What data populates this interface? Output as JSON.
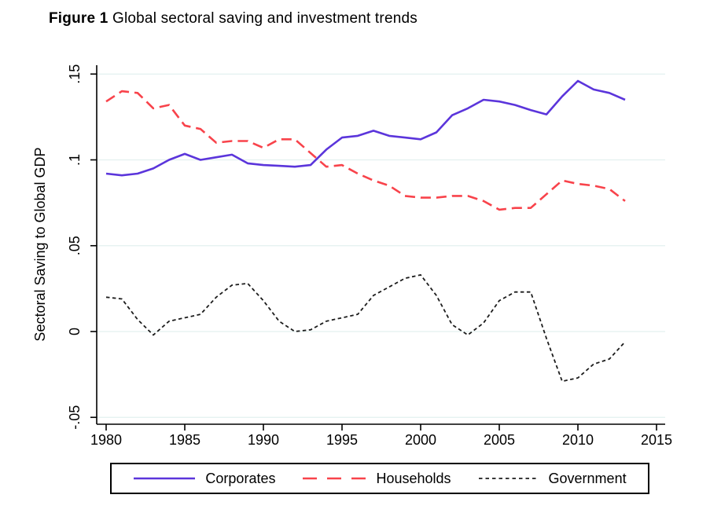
{
  "figure_title": {
    "bold": "Figure 1",
    "rest": " Global sectoral saving and investment trends"
  },
  "chart_data": {
    "type": "line",
    "title": "Figure 1 Global sectoral saving and investment trends",
    "xlabel": "",
    "ylabel": "Sectoral Saving to Global GDP",
    "grid": true,
    "legend_position": "bottom",
    "xlim": [
      1979.4,
      2015.5
    ],
    "ylim": [
      -0.054,
      0.156
    ],
    "x_ticks": {
      "labels": [
        "1980",
        "1985",
        "1990",
        "1995",
        "2000",
        "2005",
        "2010",
        "2015"
      ],
      "values": [
        1980,
        1985,
        1990,
        1995,
        2000,
        2005,
        2010,
        2015
      ]
    },
    "y_ticks": {
      "labels": [
        ".15",
        ".1",
        ".05",
        "0",
        "-.05"
      ],
      "values": [
        0.15,
        0.1,
        0.05,
        0,
        -0.05
      ]
    },
    "x": [
      1980,
      1981,
      1982,
      1983,
      1984,
      1985,
      1986,
      1987,
      1988,
      1989,
      1990,
      1991,
      1992,
      1993,
      1994,
      1995,
      1996,
      1997,
      1998,
      1999,
      2000,
      2001,
      2002,
      2003,
      2004,
      2005,
      2006,
      2007,
      2008,
      2009,
      2010,
      2011,
      2012,
      2013
    ],
    "series": [
      {
        "name": "Corporates",
        "color": "#5b35db",
        "style": "solid",
        "values": [
          0.092,
          0.091,
          0.092,
          0.095,
          0.1,
          0.1035,
          0.1,
          0.1015,
          0.103,
          0.098,
          0.097,
          0.0965,
          0.096,
          0.097,
          0.106,
          0.113,
          0.114,
          0.117,
          0.114,
          0.113,
          0.112,
          0.116,
          0.126,
          0.13,
          0.135,
          0.134,
          0.132,
          0.129,
          0.1265,
          0.137,
          0.146,
          0.141,
          0.139,
          0.135
        ]
      },
      {
        "name": "Households",
        "color": "#f8434b",
        "style": "long-dash",
        "values": [
          0.134,
          0.14,
          0.139,
          0.13,
          0.132,
          0.12,
          0.118,
          0.11,
          0.111,
          0.111,
          0.107,
          0.112,
          0.112,
          0.104,
          0.096,
          0.097,
          0.092,
          0.088,
          0.085,
          0.079,
          0.078,
          0.078,
          0.079,
          0.079,
          0.076,
          0.071,
          0.072,
          0.072,
          0.08,
          0.088,
          0.086,
          0.085,
          0.083,
          0.076
        ]
      },
      {
        "name": "Government",
        "color": "#1c1c1c",
        "style": "short-dash",
        "values": [
          0.02,
          0.019,
          0.007,
          -0.002,
          0.006,
          0.008,
          0.01,
          0.02,
          0.027,
          0.028,
          0.018,
          0.006,
          0.0,
          0.001,
          0.006,
          0.008,
          0.01,
          0.021,
          0.026,
          0.031,
          0.033,
          0.021,
          0.004,
          -0.002,
          0.005,
          0.018,
          0.023,
          0.023,
          -0.004,
          -0.029,
          -0.027,
          -0.019,
          -0.016,
          -0.006
        ]
      }
    ],
    "colors": {
      "background": "#ffffff",
      "axis": "#000000",
      "gridline": "#e3f0ef",
      "corporates": "#5b35db",
      "households": "#f8434b",
      "government": "#1c1c1c"
    }
  }
}
